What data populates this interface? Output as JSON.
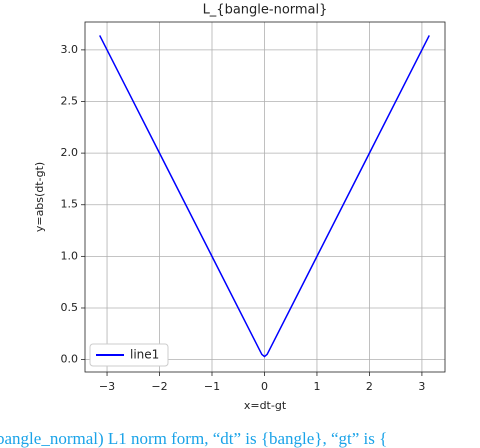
{
  "chart_data": {
    "type": "line",
    "title": "L_{bangle-normal}",
    "x_label": "x=dt-gt",
    "y_label": "y=abs(dt-gt)",
    "x": [
      -3.14,
      -2,
      -1,
      -0.1,
      -0.05,
      0,
      0.05,
      0.1,
      1,
      2,
      3.14
    ],
    "series": [
      {
        "name": "line1",
        "color": "#0000ff",
        "values": [
          3.14,
          2,
          1,
          0.1,
          0.05,
          0.03,
          0.05,
          0.1,
          1,
          2,
          3.14
        ]
      }
    ],
    "xlim": [
      -3.42,
      3.44
    ],
    "ylim": [
      -0.12,
      3.27
    ],
    "xticks": [
      {
        "value": -3,
        "label": "−3"
      },
      {
        "value": -2,
        "label": "−2"
      },
      {
        "value": -1,
        "label": "−1"
      },
      0,
      1,
      2,
      3
    ],
    "yticks": [
      {
        "value": 0,
        "label": "0.0"
      },
      {
        "value": 0.5,
        "label": "0.5"
      },
      {
        "value": 1,
        "label": "1.0"
      },
      {
        "value": 1.5,
        "label": "1.5"
      },
      {
        "value": 2,
        "label": "2.0"
      },
      {
        "value": 2.5,
        "label": "2.5"
      },
      {
        "value": 3,
        "label": "3.0"
      }
    ],
    "grid": true,
    "legend": "lower left"
  },
  "caption": "bangle_normal) L1 norm form, “dt” is {bangle}, “gt” is {"
}
